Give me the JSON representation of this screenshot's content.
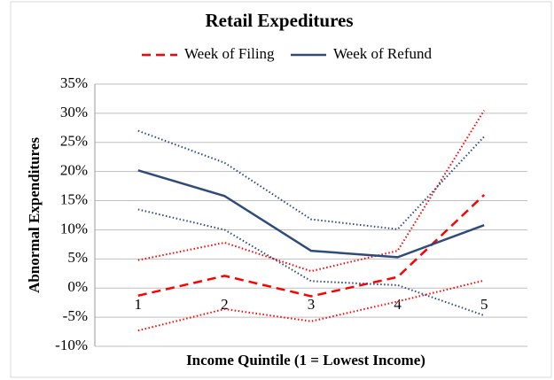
{
  "chart_data": {
    "type": "line",
    "title": "Retail Expeditures",
    "x_label": "Income Quintile (1 = Lowest Income)",
    "y_label": "Abnormal Expenditures",
    "categories": [
      "1",
      "2",
      "3",
      "4",
      "5"
    ],
    "series": [
      {
        "name": "Week of Filing",
        "color": "#ff0000",
        "dash": "dashed",
        "values": [
          -1.3,
          2.1,
          -1.4,
          1.9,
          16.0
        ],
        "upper": [
          4.8,
          7.8,
          2.9,
          6.4,
          30.5
        ],
        "lower": [
          -7.3,
          -3.6,
          -5.7,
          -2.3,
          1.3
        ]
      },
      {
        "name": "Week of Refund",
        "color": "#2f4b7c",
        "dash": "solid",
        "values": [
          20.2,
          15.8,
          6.4,
          5.3,
          10.8
        ],
        "upper": [
          27.0,
          21.5,
          11.8,
          10.1,
          26.0
        ],
        "lower": [
          13.5,
          10.0,
          1.2,
          0.5,
          -4.7
        ]
      }
    ],
    "ylim": [
      -10,
      35
    ],
    "yticks": [
      {
        "value": -10,
        "label": "-10%"
      },
      {
        "value": -5,
        "label": "-5%"
      },
      {
        "value": 0,
        "label": "0%"
      },
      {
        "value": 5,
        "label": "5%"
      },
      {
        "value": 10,
        "label": "10%"
      },
      {
        "value": 15,
        "label": "15%"
      },
      {
        "value": 20,
        "label": "20%"
      },
      {
        "value": 25,
        "label": "25%"
      },
      {
        "value": 30,
        "label": "30%"
      },
      {
        "value": 35,
        "label": "35%"
      }
    ],
    "grid": true,
    "legend": "top"
  }
}
